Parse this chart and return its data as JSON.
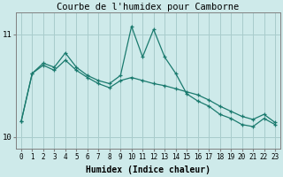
{
  "title": "Courbe de l'humidex pour Camborne",
  "xlabel": "Humidex (Indice chaleur)",
  "ylabel": "",
  "background_color": "#ceeaea",
  "line_color": "#1a7a6e",
  "grid_color": "#a8cccc",
  "x_values": [
    0,
    1,
    2,
    3,
    4,
    5,
    6,
    7,
    8,
    9,
    10,
    11,
    12,
    13,
    14,
    15,
    16,
    17,
    18,
    19,
    20,
    21,
    22,
    23
  ],
  "y_line1": [
    10.15,
    10.62,
    10.72,
    10.68,
    10.82,
    10.68,
    10.6,
    10.55,
    10.52,
    10.6,
    11.08,
    10.78,
    11.05,
    10.78,
    10.62,
    10.42,
    10.35,
    10.3,
    10.22,
    10.18,
    10.12,
    10.1,
    10.18,
    10.12
  ],
  "y_line2": [
    10.15,
    10.62,
    10.7,
    10.65,
    10.75,
    10.65,
    10.58,
    10.52,
    10.48,
    10.55,
    10.58,
    10.55,
    10.52,
    10.5,
    10.47,
    10.44,
    10.41,
    10.36,
    10.3,
    10.25,
    10.2,
    10.17,
    10.22,
    10.14
  ],
  "ylim": [
    9.88,
    11.22
  ],
  "yticks": [
    10,
    11
  ],
  "xticks": [
    0,
    1,
    2,
    3,
    4,
    5,
    6,
    7,
    8,
    9,
    10,
    11,
    12,
    13,
    14,
    15,
    16,
    17,
    18,
    19,
    20,
    21,
    22,
    23
  ],
  "title_fontsize": 7.5,
  "label_fontsize": 7,
  "tick_fontsize": 5.5
}
